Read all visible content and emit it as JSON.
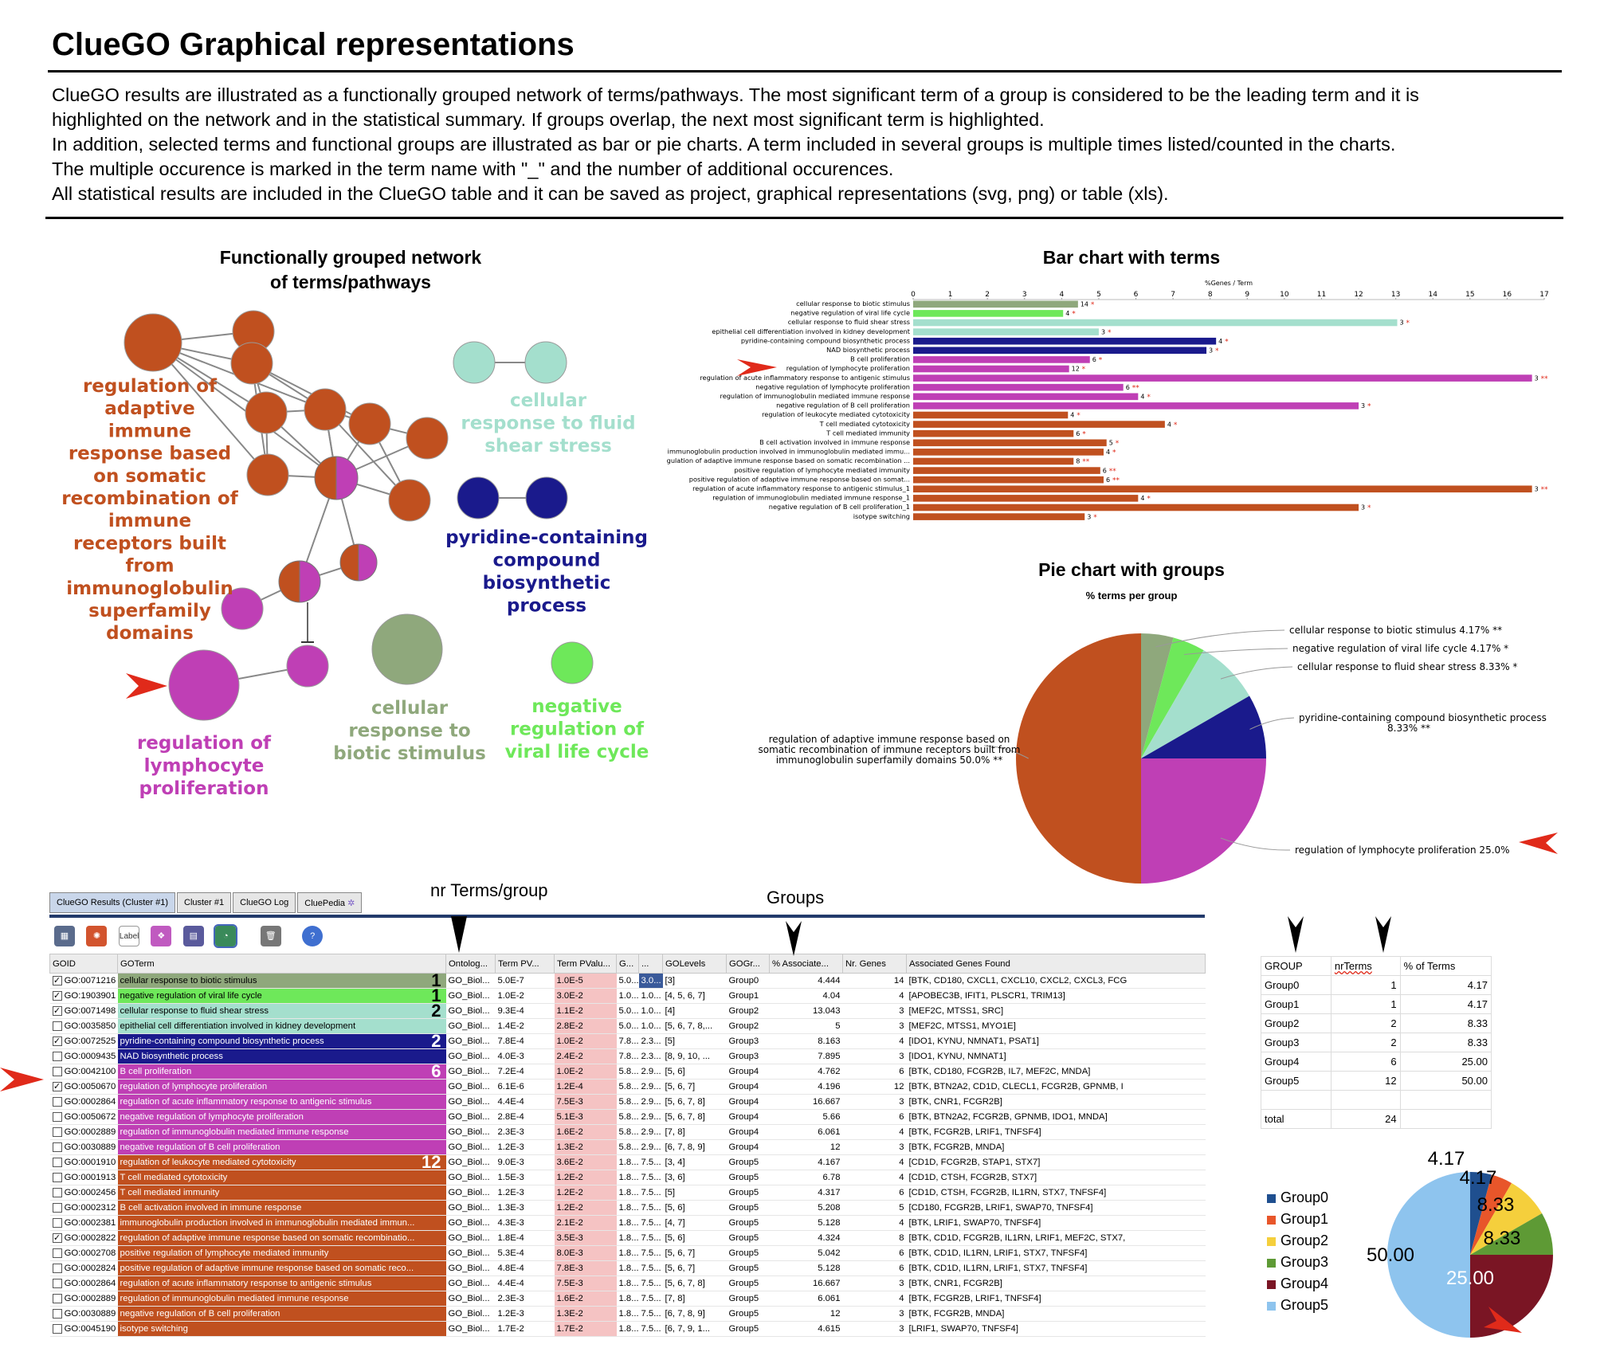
{
  "title": "ClueGO Graphical representations",
  "intro": [
    "ClueGO results are illustrated as a functionally grouped network of terms/pathways. The most significant term of a group is considered to be the leading term and it is",
    "highlighted on the network and in the statistical summary. If groups overlap, the next most significant term is highlighted.",
    "In addition, selected terms and functional groups are illustrated as bar or pie charts. A term included in several groups is multiple times listed/counted in the charts.",
    "The multiple occurence is marked in the term name with \"_\" and the number of additional occurences.",
    "All statistical results are included in the ClueGO table and it can be saved as project, graphical representations (svg, png) or table (xls)."
  ],
  "network": {
    "title_line1": "Functionally grouped network",
    "title_line2": "of terms/pathways",
    "labels": {
      "adaptive": [
        "regulation of",
        "adaptive",
        "immune",
        "response based",
        "on somatic",
        "recombination of",
        "immune",
        "receptors built",
        "from",
        "immunoglobulin",
        "superfamily",
        "domains"
      ],
      "fluid": [
        "cellular",
        "response to fluid",
        "shear stress"
      ],
      "pyridine": [
        "pyridine-containing",
        "compound",
        "biosynthetic",
        "process"
      ],
      "biotic": [
        "cellular",
        "response to",
        "biotic stimulus"
      ],
      "viral": [
        "negative",
        "regulation of",
        "viral life cycle"
      ],
      "lymphocyte": [
        "regulation of",
        "lymphocyte",
        "proliferation"
      ]
    }
  },
  "colors": {
    "biotic": "#8fa87c",
    "viral": "#6ee85a",
    "fluid": "#a4dfcd",
    "pyridine": "#1a1a8c",
    "lymph": "#bf3fb5",
    "adaptive": "#c0501f",
    "arrow": "#e02a1a"
  },
  "bar_chart": {
    "title": "Bar chart with terms",
    "axis_label": "%Genes / Term",
    "ticks": [
      0,
      1,
      2,
      3,
      4,
      5,
      6,
      7,
      8,
      9,
      10,
      11,
      12,
      13,
      14,
      15,
      16,
      17
    ],
    "chart_data": {
      "type": "bar",
      "categories": [
        "cellular response to biotic stimulus",
        "negative regulation of viral life cycle",
        "cellular response to fluid shear stress",
        "epithelial cell differentiation involved in kidney development",
        "pyridine-containing compound biosynthetic process",
        "NAD biosynthetic process",
        "B cell proliferation",
        "regulation of lymphocyte proliferation",
        "regulation of acute inflammatory response to antigenic stimulus",
        "negative regulation of lymphocyte proliferation",
        "regulation of immunoglobulin mediated immune response",
        "negative regulation of B cell proliferation",
        "regulation of leukocyte mediated cytotoxicity",
        "T cell mediated cytotoxicity",
        "T cell mediated immunity",
        "B cell activation involved in immune response",
        "immunoglobulin production involved in immunoglobulin mediated immu...",
        "gulation of adaptive immune response based on somatic recombination ...",
        "positive regulation of lymphocyte mediated immunity",
        "positive regulation of adaptive immune response based on somat...",
        "regulation of acute inflammatory response to antigenic stimulus_1",
        "regulation of immunoglobulin mediated immune response_1",
        "negative regulation of B cell proliferation_1",
        "isotype switching"
      ],
      "values": [
        4.44,
        4.04,
        13.04,
        5.0,
        8.16,
        7.9,
        4.76,
        4.2,
        16.67,
        5.66,
        6.06,
        12.0,
        4.17,
        6.78,
        4.32,
        5.21,
        5.13,
        4.32,
        5.04,
        5.13,
        16.67,
        6.06,
        12.0,
        4.62
      ],
      "gene_counts": [
        "14",
        "4",
        "3",
        "3",
        "4",
        "3",
        "6",
        "12",
        "3",
        "6",
        "4",
        "3",
        "4",
        "4",
        "6",
        "5",
        "4",
        "8",
        "6",
        "6",
        "3",
        "4",
        "3",
        "3"
      ],
      "stars": [
        "*",
        "*",
        "*",
        "*",
        "*",
        "*",
        "*",
        "*",
        "**",
        "**",
        "*",
        "*",
        "*",
        "*",
        "*",
        "*",
        "*",
        "**",
        "**",
        "**",
        "**",
        "*",
        "*",
        "*"
      ],
      "bar_groups": [
        "biotic",
        "viral",
        "fluid",
        "fluid",
        "pyridine",
        "pyridine",
        "lymph",
        "lymph",
        "lymph",
        "lymph",
        "lymph",
        "lymph",
        "adaptive",
        "adaptive",
        "adaptive",
        "adaptive",
        "adaptive",
        "adaptive",
        "adaptive",
        "adaptive",
        "adaptive",
        "adaptive",
        "adaptive",
        "adaptive"
      ],
      "xlim": [
        0,
        17
      ]
    }
  },
  "pie_chart": {
    "title": "Pie chart with groups",
    "subtitle": "% terms per group",
    "chart_data": {
      "type": "pie",
      "slices": [
        {
          "label": "cellular response to biotic stimulus 4.17% **",
          "value": 4.17,
          "group": "biotic"
        },
        {
          "label": "negative regulation of viral life cycle 4.17% *",
          "value": 4.17,
          "group": "viral"
        },
        {
          "label": "cellular response to fluid shear stress 8.33% *",
          "value": 8.33,
          "group": "fluid"
        },
        {
          "label": "pyridine-containing compound biosynthetic process 8.33% **",
          "value": 8.33,
          "group": "pyridine"
        },
        {
          "label": "regulation of lymphocyte proliferation 25.0%",
          "value": 25.0,
          "group": "lymph"
        },
        {
          "label": "regulation of adaptive immune response based on somatic recombination of immune receptors built from immunoglobulin superfamily domains 50.0% **",
          "value": 50.0,
          "group": "adaptive"
        }
      ],
      "label_lines": {
        "pyridine": [
          "pyridine-containing compound biosynthetic process",
          "8.33% **"
        ],
        "adaptive": [
          "regulation of adaptive immune response based on",
          "somatic recombination of immune receptors built from",
          "immunoglobulin superfamily domains 50.0% **"
        ]
      }
    }
  },
  "table_ui": {
    "tabs": [
      "ClueGO Results (Cluster #1)",
      "Cluster #1",
      "ClueGO Log",
      "CluePedia"
    ],
    "annot_nr_terms": "nr Terms/group",
    "annot_groups": "Groups",
    "toolbar_label": "Label",
    "columns": [
      "GOID",
      "GOTerm",
      "Ontolog...",
      "Term PV...",
      "Term PValu...",
      "G...",
      "...",
      "GOLevels",
      "GOGr...",
      "% Associate...",
      "Nr. Genes",
      "Associated Genes Found"
    ],
    "rows": [
      {
        "checked": true,
        "id": "GO:0071216",
        "term": "cellular response to biotic stimulus",
        "ont": "GO_Biol...",
        "pv": "5.0E-7",
        "pv2": "1.0E-5",
        "g": "5.0...",
        "g2": "3.0...",
        "levels": "[3]",
        "group": "Group0",
        "pct": "4.444",
        "n": "14",
        "genes": "[BTK, CD180, CXCL1, CXCL10, CXCL2, CXCL3, FCG",
        "grp": "biotic",
        "count": "1"
      },
      {
        "checked": true,
        "id": "GO:1903901",
        "term": "negative regulation of viral life cycle",
        "ont": "GO_Biol...",
        "pv": "1.0E-2",
        "pv2": "3.0E-2",
        "g": "1.0...",
        "g2": "1.0...",
        "levels": "[4, 5, 6, 7]",
        "group": "Group1",
        "pct": "4.04",
        "n": "4",
        "genes": "[APOBEC3B, IFIT1, PLSCR1, TRIM13]",
        "grp": "viral",
        "count": "1"
      },
      {
        "checked": true,
        "id": "GO:0071498",
        "term": "cellular response to fluid shear stress",
        "ont": "GO_Biol...",
        "pv": "9.3E-4",
        "pv2": "1.1E-2",
        "g": "5.0...",
        "g2": "1.0...",
        "levels": "[4]",
        "group": "Group2",
        "pct": "13.043",
        "n": "3",
        "genes": "[MEF2C, MTSS1, SRC]",
        "grp": "fluid",
        "count": "2"
      },
      {
        "checked": false,
        "id": "GO:0035850",
        "term": "epithelial cell differentiation involved in kidney development",
        "ont": "GO_Biol...",
        "pv": "1.4E-2",
        "pv2": "2.8E-2",
        "g": "5.0...",
        "g2": "1.0...",
        "levels": "[5, 6, 7, 8,...",
        "group": "Group2",
        "pct": "5",
        "n": "3",
        "genes": "[MEF2C, MTSS1, MYO1E]",
        "grp": "fluid",
        "count": ""
      },
      {
        "checked": true,
        "id": "GO:0072525",
        "term": "pyridine-containing compound biosynthetic process",
        "ont": "GO_Biol...",
        "pv": "7.8E-4",
        "pv2": "1.0E-2",
        "g": "7.8...",
        "g2": "2.3...",
        "levels": "[5]",
        "group": "Group3",
        "pct": "8.163",
        "n": "4",
        "genes": "[IDO1, KYNU, NMNAT1, PSAT1]",
        "grp": "pyridine",
        "count": "2"
      },
      {
        "checked": false,
        "id": "GO:0009435",
        "term": "NAD biosynthetic process",
        "ont": "GO_Biol...",
        "pv": "4.0E-3",
        "pv2": "2.4E-2",
        "g": "7.8...",
        "g2": "2.3...",
        "levels": "[8, 9, 10, ...",
        "group": "Group3",
        "pct": "7.895",
        "n": "3",
        "genes": "[IDO1, KYNU, NMNAT1]",
        "grp": "pyridine",
        "count": ""
      },
      {
        "checked": false,
        "id": "GO:0042100",
        "term": "B cell proliferation",
        "ont": "GO_Biol...",
        "pv": "7.2E-4",
        "pv2": "1.0E-2",
        "g": "5.8...",
        "g2": "2.9...",
        "levels": "[5, 6]",
        "group": "Group4",
        "pct": "4.762",
        "n": "6",
        "genes": "[BTK, CD180, FCGR2B, IL7, MEF2C, MNDA]",
        "grp": "lymph",
        "count": "6"
      },
      {
        "checked": true,
        "id": "GO:0050670",
        "term": "regulation of lymphocyte proliferation",
        "ont": "GO_Biol...",
        "pv": "6.1E-6",
        "pv2": "1.2E-4",
        "g": "5.8...",
        "g2": "2.9...",
        "levels": "[5, 6, 7]",
        "group": "Group4",
        "pct": "4.196",
        "n": "12",
        "genes": "[BTK, BTN2A2, CD1D, CLECL1, FCGR2B, GPNMB, I",
        "grp": "lymph",
        "count": ""
      },
      {
        "checked": false,
        "id": "GO:0002864",
        "term": "regulation of acute inflammatory response to antigenic stimulus",
        "ont": "GO_Biol...",
        "pv": "4.4E-4",
        "pv2": "7.5E-3",
        "g": "5.8...",
        "g2": "2.9...",
        "levels": "[5, 6, 7, 8]",
        "group": "Group4",
        "pct": "16.667",
        "n": "3",
        "genes": "[BTK, CNR1, FCGR2B]",
        "grp": "lymph",
        "count": ""
      },
      {
        "checked": false,
        "id": "GO:0050672",
        "term": "negative regulation of lymphocyte proliferation",
        "ont": "GO_Biol...",
        "pv": "2.8E-4",
        "pv2": "5.1E-3",
        "g": "5.8...",
        "g2": "2.9...",
        "levels": "[5, 6, 7, 8]",
        "group": "Group4",
        "pct": "5.66",
        "n": "6",
        "genes": "[BTK, BTN2A2, FCGR2B, GPNMB, IDO1, MNDA]",
        "grp": "lymph",
        "count": ""
      },
      {
        "checked": false,
        "id": "GO:0002889",
        "term": "regulation of immunoglobulin mediated immune response",
        "ont": "GO_Biol...",
        "pv": "2.3E-3",
        "pv2": "1.6E-2",
        "g": "5.8...",
        "g2": "2.9...",
        "levels": "[7, 8]",
        "group": "Group4",
        "pct": "6.061",
        "n": "4",
        "genes": "[BTK, FCGR2B, LRIF1, TNFSF4]",
        "grp": "lymph",
        "count": ""
      },
      {
        "checked": false,
        "id": "GO:0030889",
        "term": "negative regulation of B cell proliferation",
        "ont": "GO_Biol...",
        "pv": "1.2E-3",
        "pv2": "1.3E-2",
        "g": "5.8...",
        "g2": "2.9...",
        "levels": "[6, 7, 8, 9]",
        "group": "Group4",
        "pct": "12",
        "n": "3",
        "genes": "[BTK, FCGR2B, MNDA]",
        "grp": "lymph",
        "count": ""
      },
      {
        "checked": false,
        "id": "GO:0001910",
        "term": "regulation of leukocyte mediated cytotoxicity",
        "ont": "GO_Biol...",
        "pv": "9.0E-3",
        "pv2": "3.6E-2",
        "g": "1.8...",
        "g2": "7.5...",
        "levels": "[3, 4]",
        "group": "Group5",
        "pct": "4.167",
        "n": "4",
        "genes": "[CD1D, FCGR2B, STAP1, STX7]",
        "grp": "adaptive",
        "count": "12"
      },
      {
        "checked": false,
        "id": "GO:0001913",
        "term": "T cell mediated cytotoxicity",
        "ont": "GO_Biol...",
        "pv": "1.5E-3",
        "pv2": "1.2E-2",
        "g": "1.8...",
        "g2": "7.5...",
        "levels": "[3, 6]",
        "group": "Group5",
        "pct": "6.78",
        "n": "4",
        "genes": "[CD1D, CTSH, FCGR2B, STX7]",
        "grp": "adaptive",
        "count": ""
      },
      {
        "checked": false,
        "id": "GO:0002456",
        "term": "T cell mediated immunity",
        "ont": "GO_Biol...",
        "pv": "1.2E-3",
        "pv2": "1.2E-2",
        "g": "1.8...",
        "g2": "7.5...",
        "levels": "[5]",
        "group": "Group5",
        "pct": "4.317",
        "n": "6",
        "genes": "[CD1D, CTSH, FCGR2B, IL1RN, STX7, TNFSF4]",
        "grp": "adaptive",
        "count": ""
      },
      {
        "checked": false,
        "id": "GO:0002312",
        "term": "B cell activation involved in immune response",
        "ont": "GO_Biol...",
        "pv": "1.3E-3",
        "pv2": "1.2E-2",
        "g": "1.8...",
        "g2": "7.5...",
        "levels": "[5, 6]",
        "group": "Group5",
        "pct": "5.208",
        "n": "5",
        "genes": "[CD180, FCGR2B, LRIF1, SWAP70, TNFSF4]",
        "grp": "adaptive",
        "count": ""
      },
      {
        "checked": false,
        "id": "GO:0002381",
        "term": "immunoglobulin production involved in immunoglobulin mediated immun...",
        "ont": "GO_Biol...",
        "pv": "4.3E-3",
        "pv2": "2.1E-2",
        "g": "1.8...",
        "g2": "7.5...",
        "levels": "[4, 7]",
        "group": "Group5",
        "pct": "5.128",
        "n": "4",
        "genes": "[BTK, LRIF1, SWAP70, TNFSF4]",
        "grp": "adaptive",
        "count": ""
      },
      {
        "checked": true,
        "id": "GO:0002822",
        "term": "regulation of adaptive immune response based on somatic recombinatio...",
        "ont": "GO_Biol...",
        "pv": "1.8E-4",
        "pv2": "3.5E-3",
        "g": "1.8...",
        "g2": "7.5...",
        "levels": "[5, 6]",
        "group": "Group5",
        "pct": "4.324",
        "n": "8",
        "genes": "[BTK, CD1D, FCGR2B, IL1RN, LRIF1, MEF2C, STX7,",
        "grp": "adaptive",
        "count": ""
      },
      {
        "checked": false,
        "id": "GO:0002708",
        "term": "positive regulation of lymphocyte mediated immunity",
        "ont": "GO_Biol...",
        "pv": "5.3E-4",
        "pv2": "8.0E-3",
        "g": "1.8...",
        "g2": "7.5...",
        "levels": "[5, 6, 7]",
        "group": "Group5",
        "pct": "5.042",
        "n": "6",
        "genes": "[BTK, CD1D, IL1RN, LRIF1, STX7, TNFSF4]",
        "grp": "adaptive",
        "count": ""
      },
      {
        "checked": false,
        "id": "GO:0002824",
        "term": "positive regulation of adaptive immune response based on somatic reco...",
        "ont": "GO_Biol...",
        "pv": "4.8E-4",
        "pv2": "7.8E-3",
        "g": "1.8...",
        "g2": "7.5...",
        "levels": "[5, 6, 7]",
        "group": "Group5",
        "pct": "5.128",
        "n": "6",
        "genes": "[BTK, CD1D, IL1RN, LRIF1, STX7, TNFSF4]",
        "grp": "adaptive",
        "count": ""
      },
      {
        "checked": false,
        "id": "GO:0002864",
        "term": "regulation of acute inflammatory response to antigenic stimulus",
        "ont": "GO_Biol...",
        "pv": "4.4E-4",
        "pv2": "7.5E-3",
        "g": "1.8...",
        "g2": "7.5...",
        "levels": "[5, 6, 7, 8]",
        "group": "Group5",
        "pct": "16.667",
        "n": "3",
        "genes": "[BTK, CNR1, FCGR2B]",
        "grp": "adaptive",
        "count": ""
      },
      {
        "checked": false,
        "id": "GO:0002889",
        "term": "regulation of immunoglobulin mediated immune response",
        "ont": "GO_Biol...",
        "pv": "2.3E-3",
        "pv2": "1.6E-2",
        "g": "1.8...",
        "g2": "7.5...",
        "levels": "[7, 8]",
        "group": "Group5",
        "pct": "6.061",
        "n": "4",
        "genes": "[BTK, FCGR2B, LRIF1, TNFSF4]",
        "grp": "adaptive",
        "count": ""
      },
      {
        "checked": false,
        "id": "GO:0030889",
        "term": "negative regulation of B cell proliferation",
        "ont": "GO_Biol...",
        "pv": "1.2E-3",
        "pv2": "1.3E-2",
        "g": "1.8...",
        "g2": "7.5...",
        "levels": "[6, 7, 8, 9]",
        "group": "Group5",
        "pct": "12",
        "n": "3",
        "genes": "[BTK, FCGR2B, MNDA]",
        "grp": "adaptive",
        "count": ""
      },
      {
        "checked": false,
        "id": "GO:0045190",
        "term": "isotype switching",
        "ont": "GO_Biol...",
        "pv": "1.7E-2",
        "pv2": "1.7E-2",
        "g": "1.8...",
        "g2": "7.5...",
        "levels": "[6, 7, 9, 1...",
        "group": "Group5",
        "pct": "4.615",
        "n": "3",
        "genes": "[LRIF1, SWAP70, TNFSF4]",
        "grp": "adaptive",
        "count": ""
      }
    ]
  },
  "group_table": {
    "headers": [
      "GROUP",
      "nrTerms",
      "% of Terms"
    ],
    "rows": [
      {
        "group": "Group0",
        "nr": "1",
        "pct": "4.17"
      },
      {
        "group": "Group1",
        "nr": "1",
        "pct": "4.17"
      },
      {
        "group": "Group2",
        "nr": "2",
        "pct": "8.33"
      },
      {
        "group": "Group3",
        "nr": "2",
        "pct": "8.33"
      },
      {
        "group": "Group4",
        "nr": "6",
        "pct": "25.00"
      },
      {
        "group": "Group5",
        "nr": "12",
        "pct": "50.00"
      }
    ],
    "total_label": "total",
    "total": "24"
  },
  "mini_pie": {
    "chart_data": {
      "type": "pie",
      "categories": [
        "Group0",
        "Group1",
        "Group2",
        "Group3",
        "Group4",
        "Group5"
      ],
      "values": [
        4.17,
        4.17,
        8.33,
        8.33,
        25.0,
        50.0
      ],
      "labels": [
        "4.17",
        "4.17",
        "8.33",
        "8.33",
        "25.00",
        "50.00"
      ],
      "colors": [
        "#1f4f8f",
        "#e8562a",
        "#f5cf3c",
        "#5e9a35",
        "#7a1524",
        "#8ec4ee"
      ]
    }
  }
}
